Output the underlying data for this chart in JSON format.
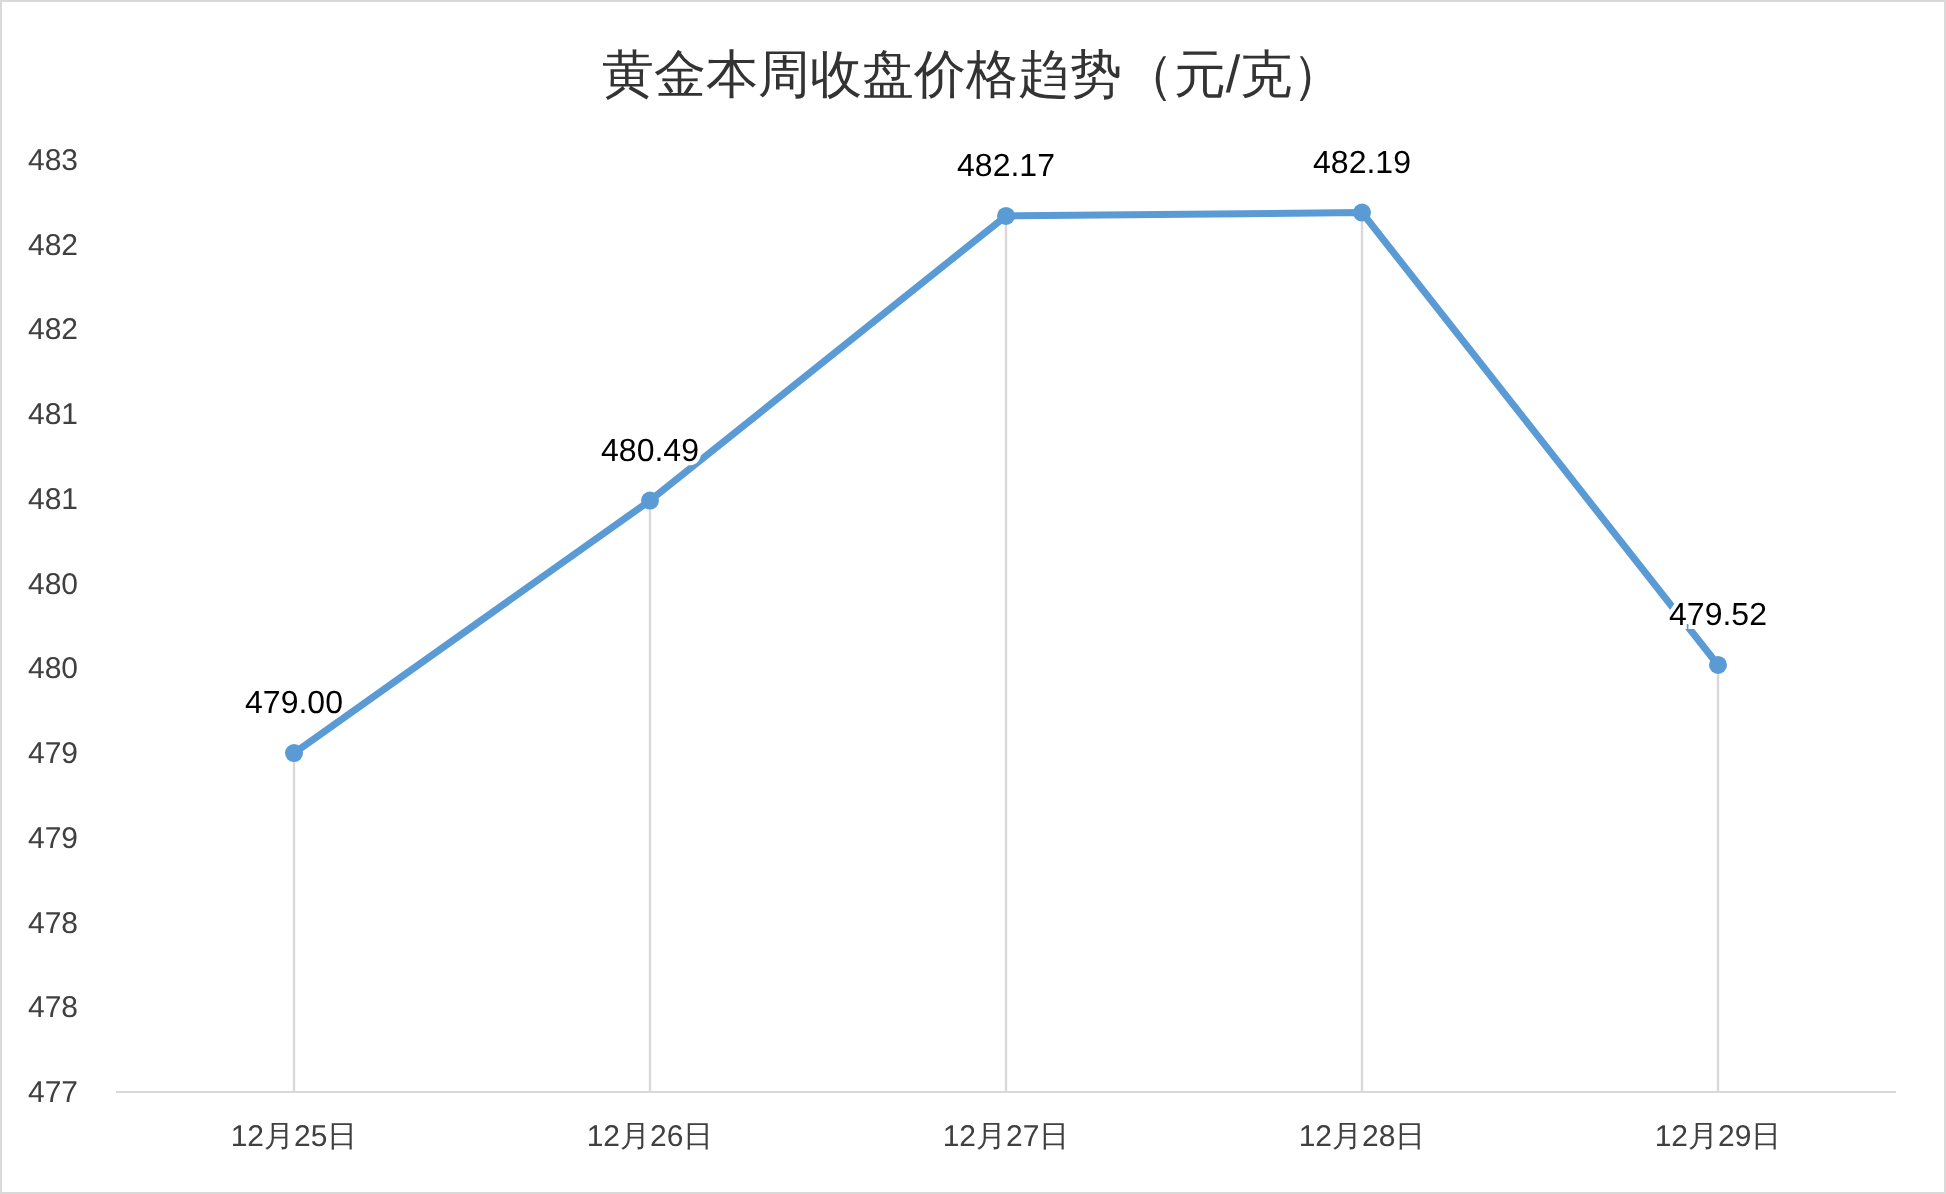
{
  "chart_data": {
    "type": "line",
    "title": "黄金本周收盘价格趋势（元/克）",
    "categories": [
      "12月25日",
      "12月26日",
      "12月27日",
      "12月28日",
      "12月29日"
    ],
    "series": [
      {
        "color": "#5b9bd5",
        "values": [
          479.0,
          480.49,
          482.17,
          482.19,
          479.52
        ]
      }
    ],
    "value_labels": [
      "479.00",
      "480.49",
      "482.17",
      "482.19",
      "479.52"
    ],
    "ylim": [
      477,
      482.5
    ],
    "yticks": [
      {
        "value": 477,
        "label": "477"
      },
      {
        "value": 477.5,
        "label": "478"
      },
      {
        "value": 478,
        "label": "478"
      },
      {
        "value": 478.5,
        "label": "479"
      },
      {
        "value": 479,
        "label": "479"
      },
      {
        "value": 479.5,
        "label": "480"
      },
      {
        "value": 480,
        "label": "480"
      },
      {
        "value": 480.5,
        "label": "481"
      },
      {
        "value": 481,
        "label": "481"
      },
      {
        "value": 481.5,
        "label": "482"
      },
      {
        "value": 482,
        "label": "482"
      },
      {
        "value": 482.5,
        "label": "483"
      }
    ],
    "grid": "x",
    "marker": "circle",
    "line_style": "solid"
  }
}
